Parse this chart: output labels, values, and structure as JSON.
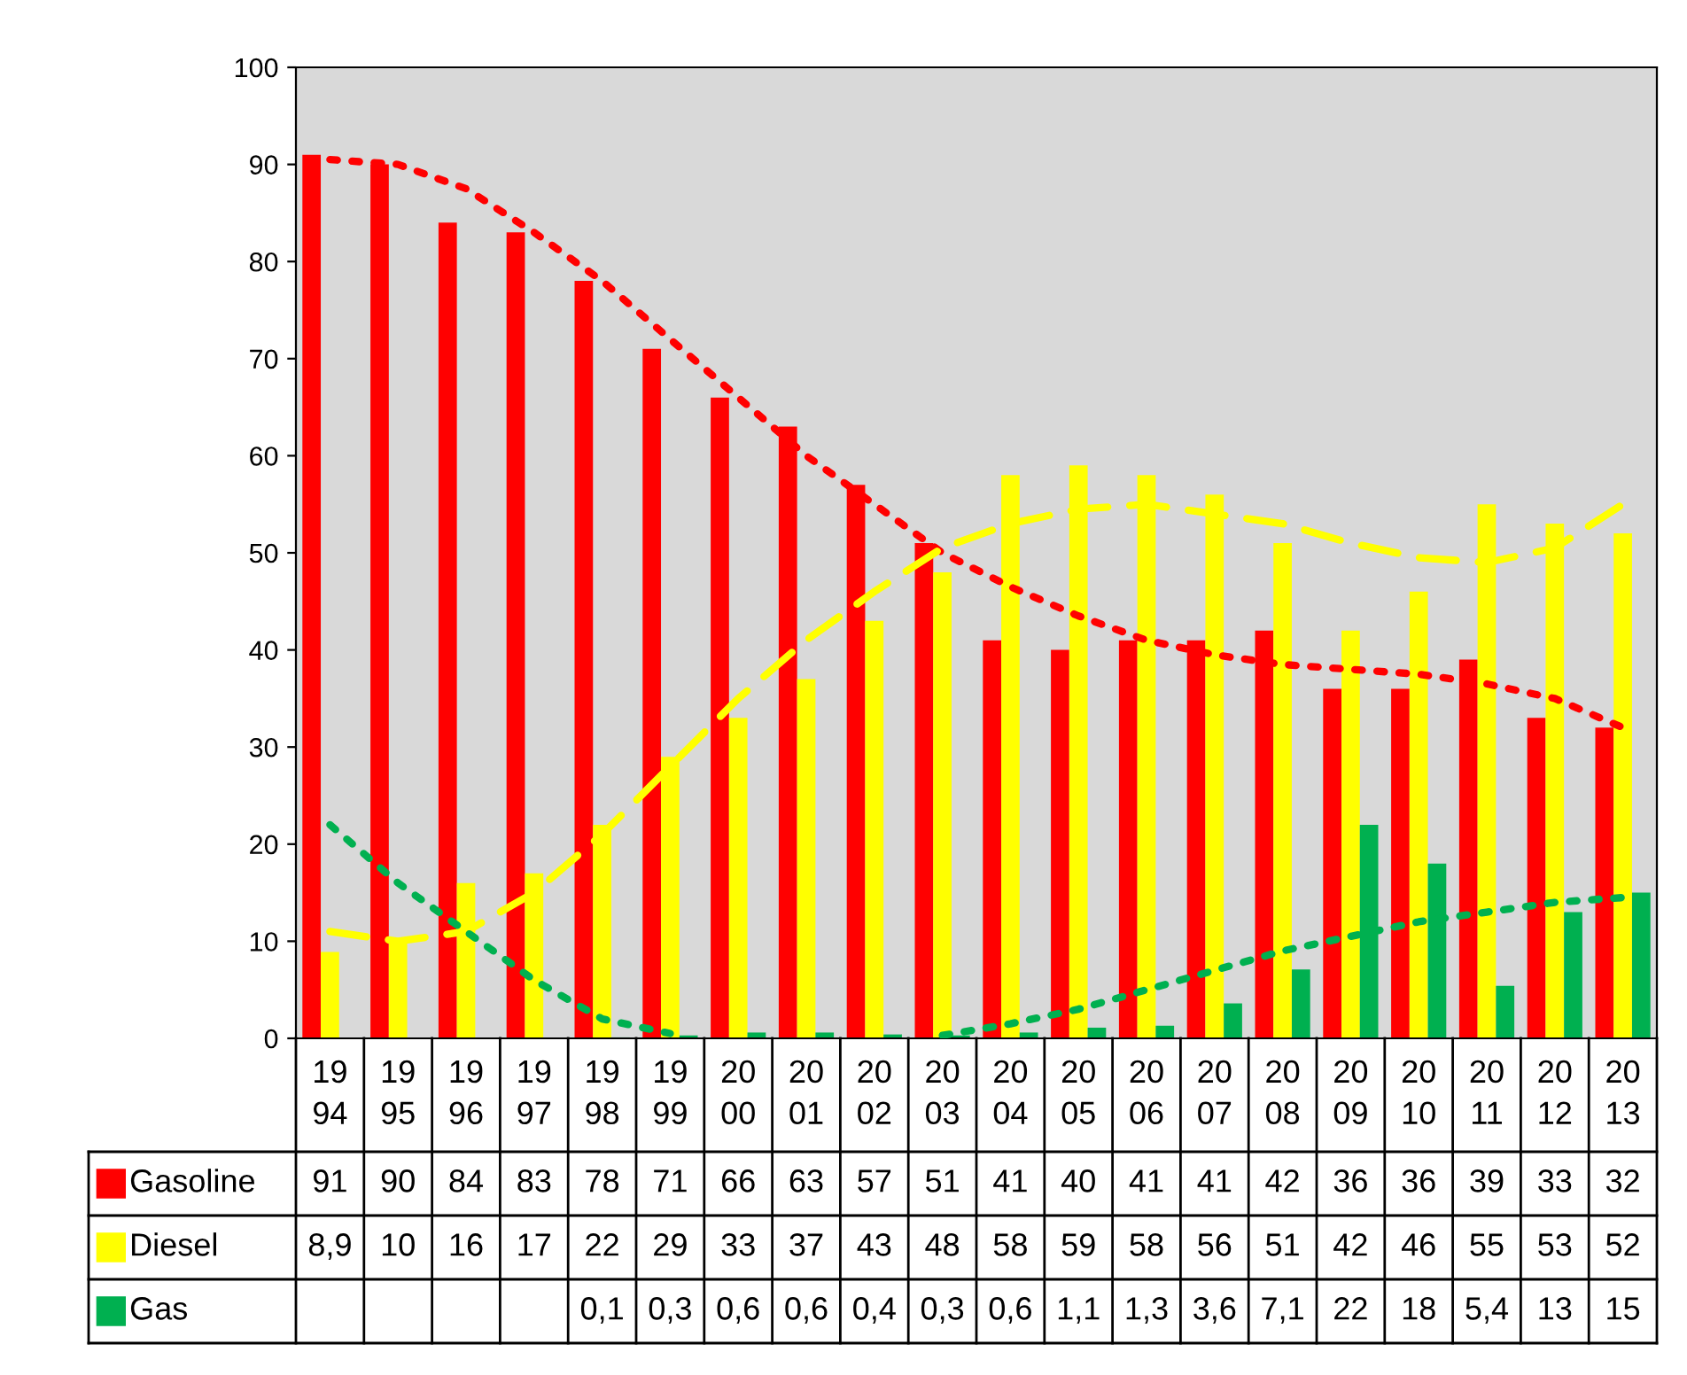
{
  "chart_data": {
    "type": "bar",
    "categories": [
      "1994",
      "1995",
      "1996",
      "1997",
      "1998",
      "1999",
      "2000",
      "2001",
      "2002",
      "2003",
      "2004",
      "2005",
      "2006",
      "2007",
      "2008",
      "2009",
      "2010",
      "2011",
      "2012",
      "2013"
    ],
    "ylim": [
      0,
      100
    ],
    "yticks": [
      0,
      10,
      20,
      30,
      40,
      50,
      60,
      70,
      80,
      90,
      100
    ],
    "grid": false,
    "legend": "left",
    "series": [
      {
        "name": "Gasoline",
        "color": "#ff0000",
        "values": [
          91,
          90,
          84,
          83,
          78,
          71,
          66,
          63,
          57,
          51,
          41,
          40,
          41,
          41,
          42,
          36,
          36,
          39,
          33,
          32
        ],
        "value_labels": [
          "91",
          "90",
          "84",
          "83",
          "78",
          "71",
          "66",
          "63",
          "57",
          "51",
          "41",
          "40",
          "41",
          "41",
          "42",
          "36",
          "36",
          "39",
          "33",
          "32"
        ]
      },
      {
        "name": "Diesel",
        "color": "#ffff00",
        "values": [
          8.9,
          10,
          16,
          17,
          22,
          29,
          33,
          37,
          43,
          48,
          58,
          59,
          58,
          56,
          51,
          42,
          46,
          55,
          53,
          52
        ],
        "value_labels": [
          "8,9",
          "10",
          "16",
          "17",
          "22",
          "29",
          "33",
          "37",
          "43",
          "48",
          "58",
          "59",
          "58",
          "56",
          "51",
          "42",
          "46",
          "55",
          "53",
          "52"
        ]
      },
      {
        "name": "Gas",
        "color": "#00b050",
        "values": [
          null,
          null,
          null,
          null,
          0.1,
          0.3,
          0.6,
          0.6,
          0.4,
          0.3,
          0.6,
          1.1,
          1.3,
          3.6,
          7.1,
          22,
          18,
          5.4,
          13,
          15
        ],
        "value_labels": [
          null,
          null,
          null,
          null,
          "0,1",
          "0,3",
          "0,6",
          "0,6",
          "0,4",
          "0,3",
          "0,6",
          "1,1",
          "1,3",
          "3,6",
          "7,1",
          "22",
          "18",
          "5,4",
          "13",
          "15"
        ]
      },
      {
        "type": "line",
        "line_style": "dotted",
        "color": "#ff0000",
        "values": [
          90.5,
          90,
          87.5,
          83,
          78,
          72,
          66,
          60,
          55,
          50,
          46.5,
          43.5,
          41,
          39.5,
          38.5,
          38,
          37.5,
          36.5,
          35,
          32
        ]
      },
      {
        "type": "line",
        "line_style": "dashed",
        "color": "#ffff00",
        "values": [
          11,
          10,
          11,
          15,
          21,
          28,
          35,
          41,
          46,
          50.5,
          53,
          54.5,
          55,
          54,
          53,
          51,
          49.5,
          49,
          50.5,
          55
        ]
      },
      {
        "type": "line",
        "line_style": "dotted",
        "color": "#00b050",
        "values": [
          22,
          16,
          11,
          6,
          2,
          0.5,
          null,
          null,
          null,
          0.3,
          1.5,
          3,
          5,
          7,
          9,
          10.5,
          12,
          13,
          14,
          14.5
        ]
      }
    ]
  }
}
